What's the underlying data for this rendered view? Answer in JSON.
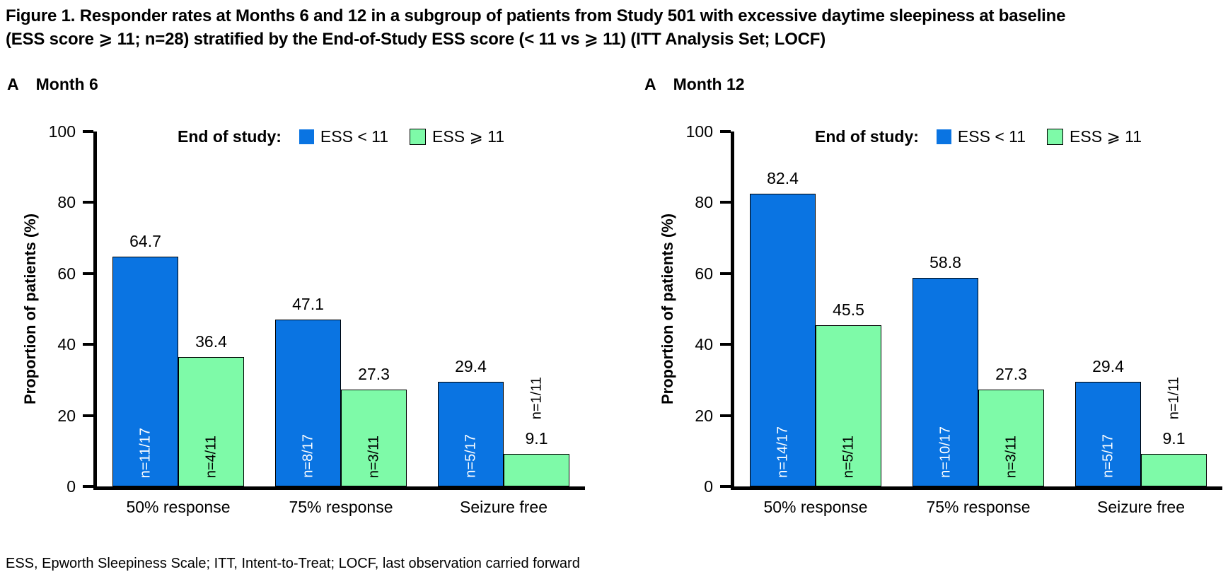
{
  "figure": {
    "title_lines": [
      "Figure 1. Responder rates at Months 6 and 12 in a subgroup of patients from Study 501 with excessive daytime sleepiness at baseline",
      "(ESS score ⩾ 11; n=28) stratified by the End-of-Study ESS score (< 11 vs ⩾ 11) (ITT Analysis Set; LOCF)"
    ],
    "footnote": "ESS, Epworth Sleepiness Scale; ITT, Intent-to-Treat; LOCF, last observation carried forward"
  },
  "colors": {
    "ess_lt_11": "#0A74E2",
    "ess_ge_11": "#7EFAA8",
    "axis": "#000000",
    "bar_label_on_blue": "#FFFFFF",
    "bar_label_on_green": "#000000"
  },
  "chart_data": [
    {
      "type": "bar",
      "panel_letter": "A",
      "panel_title": "Month 6",
      "ylabel": "Proportion of patients (%)",
      "ylim": [
        0,
        100
      ],
      "yticks": [
        0,
        20,
        40,
        60,
        80,
        100
      ],
      "grid": false,
      "legend_position": "top-center-inside",
      "legend_title": "End of study:",
      "categories": [
        "50% response",
        "75% response",
        "Seizure free"
      ],
      "series": [
        {
          "name": "ESS < 11",
          "color": "#0A74E2",
          "label_color": "#FFFFFF",
          "values": [
            64.7,
            47.1,
            29.4
          ],
          "bar_labels": [
            "n=11/17",
            "n=8/17",
            "n=5/17"
          ]
        },
        {
          "name": "ESS ⩾ 11",
          "color": "#7EFAA8",
          "label_color": "#000000",
          "values": [
            36.4,
            27.3,
            9.1
          ],
          "bar_labels": [
            "n=4/11",
            "n=3/11",
            "n=1/11"
          ]
        }
      ]
    },
    {
      "type": "bar",
      "panel_letter": "A",
      "panel_title": "Month 12",
      "ylabel": "Proportion of patients (%)",
      "ylim": [
        0,
        100
      ],
      "yticks": [
        0,
        20,
        40,
        60,
        80,
        100
      ],
      "grid": false,
      "legend_position": "top-center-inside",
      "legend_title": "End of study:",
      "categories": [
        "50% response",
        "75% response",
        "Seizure free"
      ],
      "series": [
        {
          "name": "ESS < 11",
          "color": "#0A74E2",
          "label_color": "#FFFFFF",
          "values": [
            82.4,
            58.8,
            29.4
          ],
          "bar_labels": [
            "n=14/17",
            "n=10/17",
            "n=5/17"
          ]
        },
        {
          "name": "ESS ⩾ 11",
          "color": "#7EFAA8",
          "label_color": "#000000",
          "values": [
            45.5,
            27.3,
            9.1
          ],
          "bar_labels": [
            "n=5/11",
            "n=3/11",
            "n=1/11"
          ]
        }
      ]
    }
  ]
}
